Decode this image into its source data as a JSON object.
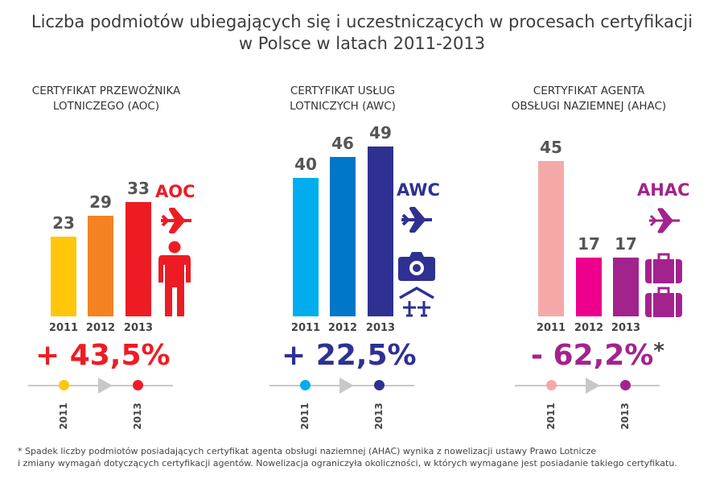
{
  "title": [
    "Liczba podmiotów ubiegających się i uczestniczących w procesach certyfikacji",
    "w Polsce w latach 2011-2013"
  ],
  "chart_data": [
    {
      "type": "bar",
      "title": "CERTYFIKAT PRZEWOŹNIKA LOTNICZEGO (AOC)",
      "title_lines": [
        "CERTYFIKAT PRZEWOŹNIKA",
        "LOTNICZEGO (AOC)"
      ],
      "code": "AOC",
      "categories": [
        "2011",
        "2012",
        "2013"
      ],
      "values": [
        23,
        29,
        33
      ],
      "colors": [
        "#FFC60B",
        "#F58220",
        "#ED1C24"
      ],
      "accent": "#ED1C24",
      "change": "+ 43,5%",
      "timeline": [
        "2011",
        "2013"
      ],
      "icons": [
        "airplane-icon",
        "person-icon"
      ]
    },
    {
      "type": "bar",
      "title": "CERTYFIKAT USŁUG LOTNICZYCH (AWC)",
      "title_lines": [
        "CERTYFIKAT USŁUG",
        "LOTNICZYCH (AWC)"
      ],
      "code": "AWC",
      "categories": [
        "2011",
        "2012",
        "2013"
      ],
      "values": [
        40,
        46,
        49
      ],
      "colors": [
        "#00AEEF",
        "#0077C8",
        "#2E3192"
      ],
      "accent": "#2E3192",
      "change": "+ 22,5%",
      "timeline": [
        "2011",
        "2013"
      ],
      "icons": [
        "airplane-icon",
        "camera-icon",
        "hangar-icon"
      ]
    },
    {
      "type": "bar",
      "title": "CERTYFIKAT AGENTA OBSŁUGI NAZIEMNEJ (AHAC)",
      "title_lines": [
        "CERTYFIKAT AGENTA",
        "OBSŁUGI NAZIEMNEJ (AHAC)"
      ],
      "code": "AHAC",
      "categories": [
        "2011",
        "2012",
        "2013"
      ],
      "values": [
        45,
        17,
        17
      ],
      "colors": [
        "#F4A9A8",
        "#EC008C",
        "#A3238E"
      ],
      "accent": "#A3238E",
      "change": "- 62,2%",
      "change_note": "*",
      "timeline": [
        "2011",
        "2013"
      ],
      "icons": [
        "airplane-icon",
        "suitcase-icon",
        "suitcase-icon"
      ]
    }
  ],
  "footnote": [
    "* Spadek liczby podmiotów posiadających certyfikat agenta obsługi naziemnej (AHAC) wynika z nowelizacji ustawy Prawo Lotnicze",
    "i zmiany wymagań dotyczących certyfikacji agentów. Nowelizacja ograniczyła okoliczności, w których wymagane jest posiadanie takiego certyfikatu."
  ]
}
